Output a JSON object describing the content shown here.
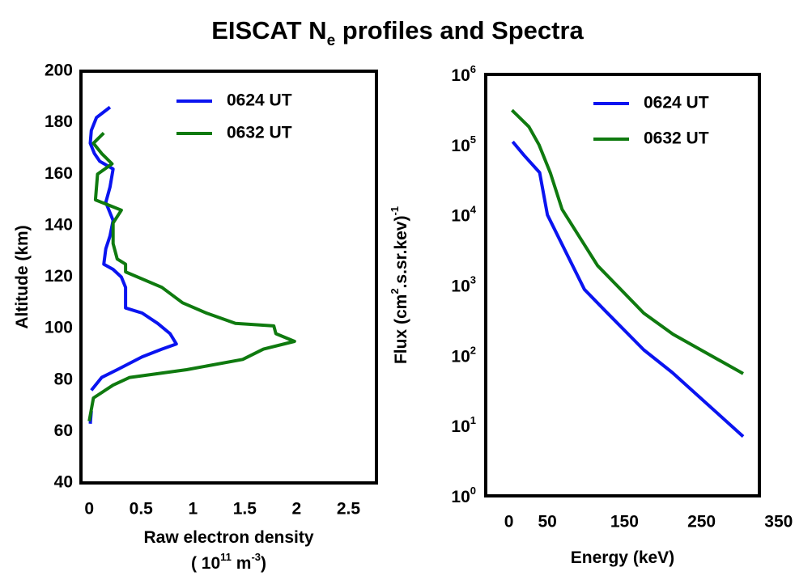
{
  "title": [
    {
      "text": "EISCAT N"
    },
    {
      "text": "e",
      "script": "sub"
    },
    {
      "text": " profiles and Spectra"
    }
  ],
  "chart_data": [
    {
      "type": "line",
      "x_label": [
        {
          "text": "Raw electron density"
        }
      ],
      "x_unit": [
        {
          "text": "( 10"
        },
        {
          "text": "11",
          "script": "sup"
        },
        {
          "text": " m"
        },
        {
          "text": "-3",
          "script": "sup"
        },
        {
          "text": ")"
        }
      ],
      "y_label": [
        {
          "text": "Altitude (km)"
        }
      ],
      "xlim": [
        -0.08,
        2.77
      ],
      "xticks": [
        0,
        0.5,
        1,
        1.5,
        2,
        2.5
      ],
      "ylim": [
        40,
        200
      ],
      "yticks": [
        40,
        60,
        80,
        100,
        120,
        140,
        160,
        180,
        200
      ],
      "legend": "top-right",
      "series": [
        {
          "name": "0624 UT",
          "color": "#0a14f0",
          "x": [
            0.2,
            0.07,
            0.02,
            0.01,
            0.05,
            0.1,
            0.23,
            0.2,
            0.16,
            0.23,
            0.2,
            0.16,
            0.14,
            0.23,
            0.31,
            0.35,
            0.35,
            0.51,
            0.66,
            0.78,
            0.84,
            0.7,
            0.51,
            0.27,
            0.12,
            0.02,
            null,
            0.02,
            0.01
          ],
          "y": [
            186,
            182,
            177,
            172,
            168,
            165,
            162,
            155,
            149,
            142,
            136,
            131,
            125,
            123,
            120,
            116,
            108,
            106,
            102,
            98,
            94,
            92,
            89,
            84,
            81,
            76,
            null,
            68,
            63
          ]
        },
        {
          "name": "0632 UT",
          "color": "#0f7a0f",
          "x": [
            0.14,
            0.04,
            0.12,
            0.22,
            0.08,
            0.06,
            0.31,
            0.23,
            0.23,
            0.27,
            0.35,
            0.35,
            0.7,
            0.9,
            1.13,
            1.41,
            1.78,
            1.8,
            1.98,
            1.68,
            1.48,
            0.94,
            0.39,
            0.23,
            0.04,
            0
          ],
          "y": [
            176,
            172,
            168,
            164,
            160,
            150,
            146,
            141,
            133,
            127,
            125,
            122,
            116,
            110,
            106,
            102,
            101,
            98,
            95,
            92,
            88,
            84,
            81,
            78,
            73,
            64
          ]
        }
      ]
    },
    {
      "type": "line",
      "x_label": [
        {
          "text": "Energy (keV)"
        }
      ],
      "y_label": [
        {
          "text": "Flux (cm"
        },
        {
          "text": "2",
          "script": "sup"
        },
        {
          "text": ".s.sr.kev)"
        },
        {
          "text": "-1",
          "script": "sup"
        }
      ],
      "xlim": [
        -30,
        325
      ],
      "xticks": [
        0,
        50,
        150,
        250,
        350
      ],
      "ylim": [
        1,
        1000000
      ],
      "log_y": true,
      "yticks": [
        {
          "value": 1,
          "label": [
            {
              "text": "10"
            },
            {
              "text": "0",
              "script": "sup"
            }
          ]
        },
        {
          "value": 10,
          "label": [
            {
              "text": "10"
            },
            {
              "text": "1",
              "script": "sup"
            }
          ]
        },
        {
          "value": 100,
          "label": [
            {
              "text": "10"
            },
            {
              "text": "2",
              "script": "sup"
            }
          ]
        },
        {
          "value": 1000,
          "label": [
            {
              "text": "10"
            },
            {
              "text": "3",
              "script": "sup"
            }
          ]
        },
        {
          "value": 10000,
          "label": [
            {
              "text": "10"
            },
            {
              "text": "4",
              "script": "sup"
            }
          ]
        },
        {
          "value": 100000,
          "label": [
            {
              "text": "10"
            },
            {
              "text": "5",
              "script": "sup"
            }
          ]
        },
        {
          "value": 1000000,
          "label": [
            {
              "text": "10"
            },
            {
              "text": "6",
              "script": "sup"
            }
          ]
        }
      ],
      "legend": "top-right",
      "series": [
        {
          "name": "0624 UT",
          "color": "#0a14f0",
          "x": [
            5,
            20,
            40,
            50,
            68,
            98,
            126,
            175,
            212,
            304
          ],
          "y": [
            110000,
            70000,
            40000,
            10000,
            4000,
            870,
            420,
            120,
            57,
            7
          ]
        },
        {
          "name": "0632 UT",
          "color": "#0f7a0f",
          "x": [
            4,
            26,
            39,
            54,
            69,
            115,
            175,
            213,
            304
          ],
          "y": [
            310000,
            180000,
            100000,
            39000,
            12000,
            1900,
            400,
            200,
            55
          ]
        }
      ]
    }
  ]
}
